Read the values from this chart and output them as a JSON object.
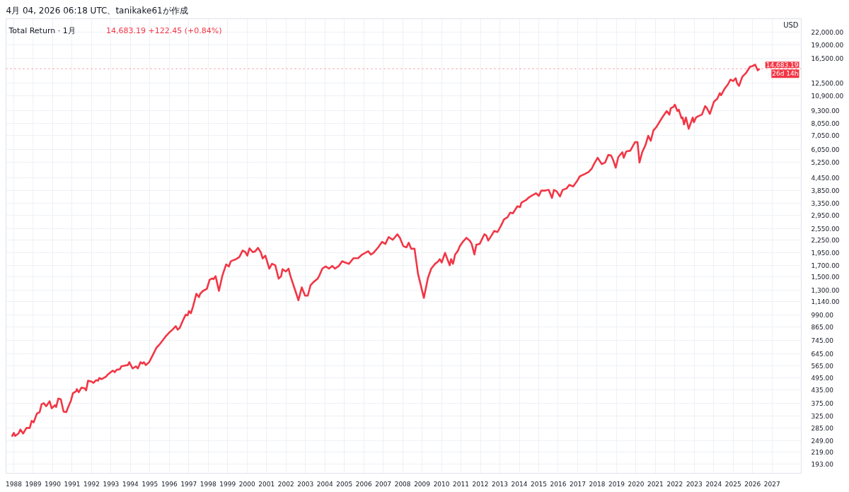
{
  "chart_data": {
    "type": "line",
    "title": "Total Return · 1月",
    "subtitle": "14,683.19  +122.45 (+0.84%)",
    "ylabel": "USD",
    "annotations": [
      "4月 04, 2026 06:18 UTC、tanikake61が作成",
      {
        "text": "26d 14h",
        "x": 2028.5,
        "y": 14683.19
      }
    ],
    "x": [
      1987.9,
      1988.0,
      1988.07,
      1988.24,
      1988.34,
      1988.48,
      1988.65,
      1988.82,
      1988.92,
      1989.02,
      1989.19,
      1989.33,
      1989.43,
      1989.54,
      1989.67,
      1989.84,
      1989.95,
      1990.12,
      1990.18,
      1990.29,
      1990.42,
      1990.56,
      1990.7,
      1990.8,
      1990.94,
      1991.04,
      1991.21,
      1991.24,
      1991.34,
      1991.48,
      1991.65,
      1991.72,
      1991.82,
      1991.99,
      1992.1,
      1992.23,
      1992.33,
      1992.4,
      1992.51,
      1992.74,
      1992.85,
      1993.09,
      1993.19,
      1993.29,
      1993.46,
      1993.53,
      1993.7,
      1993.87,
      1993.94,
      1994.11,
      1994.28,
      1994.38,
      1994.52,
      1994.62,
      1994.69,
      1994.79,
      1994.96,
      1995.17,
      1995.34,
      1995.51,
      1995.68,
      1995.82,
      1995.99,
      1996.16,
      1996.33,
      1996.43,
      1996.53,
      1996.7,
      1996.84,
      1996.94,
      1997.01,
      1997.11,
      1997.22,
      1997.39,
      1997.52,
      1997.59,
      1997.73,
      1997.93,
      1998.07,
      1998.2,
      1998.27,
      1998.38,
      1998.55,
      1998.72,
      1998.92,
      1999.06,
      1999.16,
      1999.33,
      1999.43,
      1999.6,
      1999.77,
      1999.91,
      2000.01,
      2000.12,
      2000.29,
      2000.42,
      2000.56,
      2000.7,
      2000.8,
      2000.94,
      2001.14,
      2001.28,
      2001.45,
      2001.62,
      2001.75,
      2001.82,
      2001.99,
      2002.13,
      2002.23,
      2002.47,
      2002.64,
      2002.81,
      2002.98,
      2003.12,
      2003.26,
      2003.43,
      2003.63,
      2003.7,
      2003.87,
      2004.04,
      2004.21,
      2004.38,
      2004.52,
      2004.72,
      2004.89,
      2005.03,
      2005.24,
      2005.47,
      2005.71,
      2005.92,
      2006.23,
      2006.36,
      2006.5,
      2006.74,
      2006.94,
      2007.11,
      2007.28,
      2007.49,
      2007.73,
      2007.86,
      2008.03,
      2008.2,
      2008.31,
      2008.44,
      2008.61,
      2008.79,
      2008.89,
      2009.09,
      2009.3,
      2009.47,
      2009.67,
      2009.81,
      2009.91,
      2010.01,
      2010.18,
      2010.42,
      2010.49,
      2010.59,
      2010.7,
      2010.83,
      2010.94,
      2011.11,
      2011.28,
      2011.45,
      2011.55,
      2011.69,
      2011.79,
      2011.96,
      2012.2,
      2012.3,
      2012.4,
      2012.57,
      2012.71,
      2012.88,
      2013.05,
      2013.22,
      2013.39,
      2013.53,
      2013.67,
      2013.9,
      2014.04,
      2014.11,
      2014.35,
      2014.49,
      2014.62,
      2014.86,
      2015.0,
      2015.13,
      2015.34,
      2015.51,
      2015.68,
      2015.78,
      2015.92,
      2016.09,
      2016.23,
      2016.43,
      2016.57,
      2016.77,
      2016.98,
      2017.11,
      2017.35,
      2017.56,
      2017.73,
      2017.86,
      2018.03,
      2018.24,
      2018.41,
      2018.58,
      2018.72,
      2018.82,
      2018.96,
      2019.09,
      2019.3,
      2019.37,
      2019.5,
      2019.71,
      2019.95,
      2020.08,
      2020.18,
      2020.32,
      2020.49,
      2020.63,
      2020.76,
      2020.9,
      2021.04,
      2021.35,
      2021.58,
      2021.72,
      2021.79,
      2021.93,
      2022.0,
      2022.13,
      2022.2,
      2022.34,
      2022.4,
      2022.47,
      2022.57,
      2022.71,
      2022.92,
      2022.98,
      2023.09,
      2023.22,
      2023.39,
      2023.56,
      2023.63,
      2023.8,
      2024.01,
      2024.18,
      2024.31,
      2024.38,
      2024.55,
      2024.72,
      2024.86,
      2025.0,
      2025.13,
      2025.2,
      2025.3,
      2025.47,
      2025.68,
      2025.86,
      2025.99,
      2026.13,
      2026.26,
      2026.36
    ],
    "series": [
      {
        "color": "#f23645",
        "values": [
          260,
          271,
          262,
          269,
          281,
          269,
          286,
          286,
          309,
          304,
          335,
          340,
          371,
          375,
          363,
          383,
          355,
          367,
          360,
          395,
          391,
          342,
          340,
          360,
          386,
          418,
          428,
          438,
          423,
          445,
          441,
          432,
          480,
          476,
          469,
          483,
          480,
          495,
          488,
          502,
          515,
          536,
          527,
          541,
          545,
          562,
          566,
          570,
          588,
          549,
          562,
          549,
          588,
          579,
          588,
          570,
          588,
          642,
          690,
          717,
          751,
          782,
          813,
          840,
          873,
          840,
          855,
          930,
          990,
          983,
          1030,
          1006,
          1085,
          1246,
          1200,
          1246,
          1285,
          1315,
          1451,
          1474,
          1462,
          1510,
          1285,
          1510,
          1717,
          1680,
          1778,
          1805,
          1820,
          1862,
          2000,
          1965,
          1890,
          2050,
          1965,
          1985,
          2060,
          1965,
          1835,
          1890,
          1640,
          1730,
          1700,
          1470,
          1510,
          1630,
          1590,
          1640,
          1510,
          1295,
          1160,
          1335,
          1220,
          1220,
          1365,
          1420,
          1470,
          1510,
          1640,
          1680,
          1640,
          1690,
          1640,
          1690,
          1780,
          1755,
          1730,
          1840,
          1840,
          1915,
          1985,
          1915,
          1950,
          2070,
          2200,
          2150,
          2320,
          2250,
          2390,
          2300,
          2100,
          2070,
          2180,
          2040,
          2040,
          1550,
          1420,
          1190,
          1480,
          1640,
          1730,
          1770,
          1820,
          1755,
          1950,
          1700,
          1820,
          1730,
          1915,
          1985,
          2100,
          2210,
          2300,
          2230,
          2150,
          1915,
          2130,
          2150,
          2390,
          2360,
          2230,
          2360,
          2480,
          2450,
          2620,
          2820,
          2880,
          3030,
          3010,
          3250,
          3220,
          3380,
          3480,
          3580,
          3640,
          3750,
          3640,
          3860,
          3860,
          3890,
          3560,
          3890,
          3830,
          3620,
          3890,
          3950,
          4110,
          4040,
          4300,
          4510,
          4620,
          4730,
          4920,
          5200,
          5530,
          5160,
          5250,
          5710,
          5670,
          5410,
          4960,
          5570,
          5880,
          5530,
          5930,
          5980,
          6560,
          6560,
          5250,
          5880,
          6360,
          7040,
          6660,
          7480,
          7720,
          8600,
          9230,
          8880,
          9520,
          9670,
          9900,
          9230,
          9380,
          8540,
          8600,
          7970,
          8600,
          7600,
          8600,
          8160,
          8600,
          8740,
          8880,
          9750,
          9600,
          8950,
          10230,
          10560,
          11230,
          10980,
          11760,
          12330,
          13030,
          12830,
          13230,
          12520,
          12170,
          13440,
          14090,
          14990,
          15110,
          15350,
          14420,
          14683.19
        ]
      }
    ],
    "log": "y",
    "grid": true,
    "xlim": [
      1987.6,
      2028.5
    ],
    "ylim": [
      174,
      25400
    ],
    "xticks": [
      1988,
      1989,
      1990,
      1991,
      1992,
      1993,
      1994,
      1995,
      1996,
      1997,
      1998,
      1999,
      2000,
      2001,
      2002,
      2003,
      2004,
      2005,
      2006,
      2007,
      2008,
      2009,
      2010,
      2011,
      2012,
      2013,
      2014,
      2015,
      2016,
      2017,
      2018,
      2019,
      2020,
      2021,
      2022,
      2023,
      2024,
      2025,
      2026,
      2027
    ],
    "yticks": [
      {
        "value": 193,
        "label": "193.00"
      },
      {
        "value": 219,
        "label": "219.00"
      },
      {
        "value": 249,
        "label": "249.00"
      },
      {
        "value": 285,
        "label": "285.00"
      },
      {
        "value": 325,
        "label": "325.00"
      },
      {
        "value": 375,
        "label": "375.00"
      },
      {
        "value": 435,
        "label": "435.00"
      },
      {
        "value": 495,
        "label": "495.00"
      },
      {
        "value": 565,
        "label": "565.00"
      },
      {
        "value": 645,
        "label": "645.00"
      },
      {
        "value": 745,
        "label": "745.00"
      },
      {
        "value": 865,
        "label": "865.00"
      },
      {
        "value": 990,
        "label": "990.00"
      },
      {
        "value": 1140,
        "label": "1,140.00"
      },
      {
        "value": 1300,
        "label": "1,300.00"
      },
      {
        "value": 1500,
        "label": "1,500.00"
      },
      {
        "value": 1700,
        "label": "1,700.00"
      },
      {
        "value": 1950,
        "label": "1,950.00"
      },
      {
        "value": 2250,
        "label": "2,250.00"
      },
      {
        "value": 2550,
        "label": "2,550.00"
      },
      {
        "value": 2950,
        "label": "2,950.00"
      },
      {
        "value": 3350,
        "label": "3,350.00"
      },
      {
        "value": 3850,
        "label": "3,850.00"
      },
      {
        "value": 4450,
        "label": "4,450.00"
      },
      {
        "value": 5250,
        "label": "5,250.00"
      },
      {
        "value": 6050,
        "label": "6,050.00"
      },
      {
        "value": 7050,
        "label": "7,050.00"
      },
      {
        "value": 8050,
        "label": "8,050.00"
      },
      {
        "value": 9300,
        "label": "9,300.00"
      },
      {
        "value": 10900,
        "label": "10,900.00"
      },
      {
        "value": 12500,
        "label": "12,500.00"
      },
      {
        "value": 16500,
        "label": "16,500.00"
      },
      {
        "value": 19000,
        "label": "19,000.00"
      },
      {
        "value": 22000,
        "label": "22,000.00"
      }
    ],
    "ref_lines": [
      {
        "axis": "y",
        "value": 14683.19,
        "label": "14,683.19",
        "color": "#f23645",
        "line_style": "dotted"
      }
    ]
  }
}
